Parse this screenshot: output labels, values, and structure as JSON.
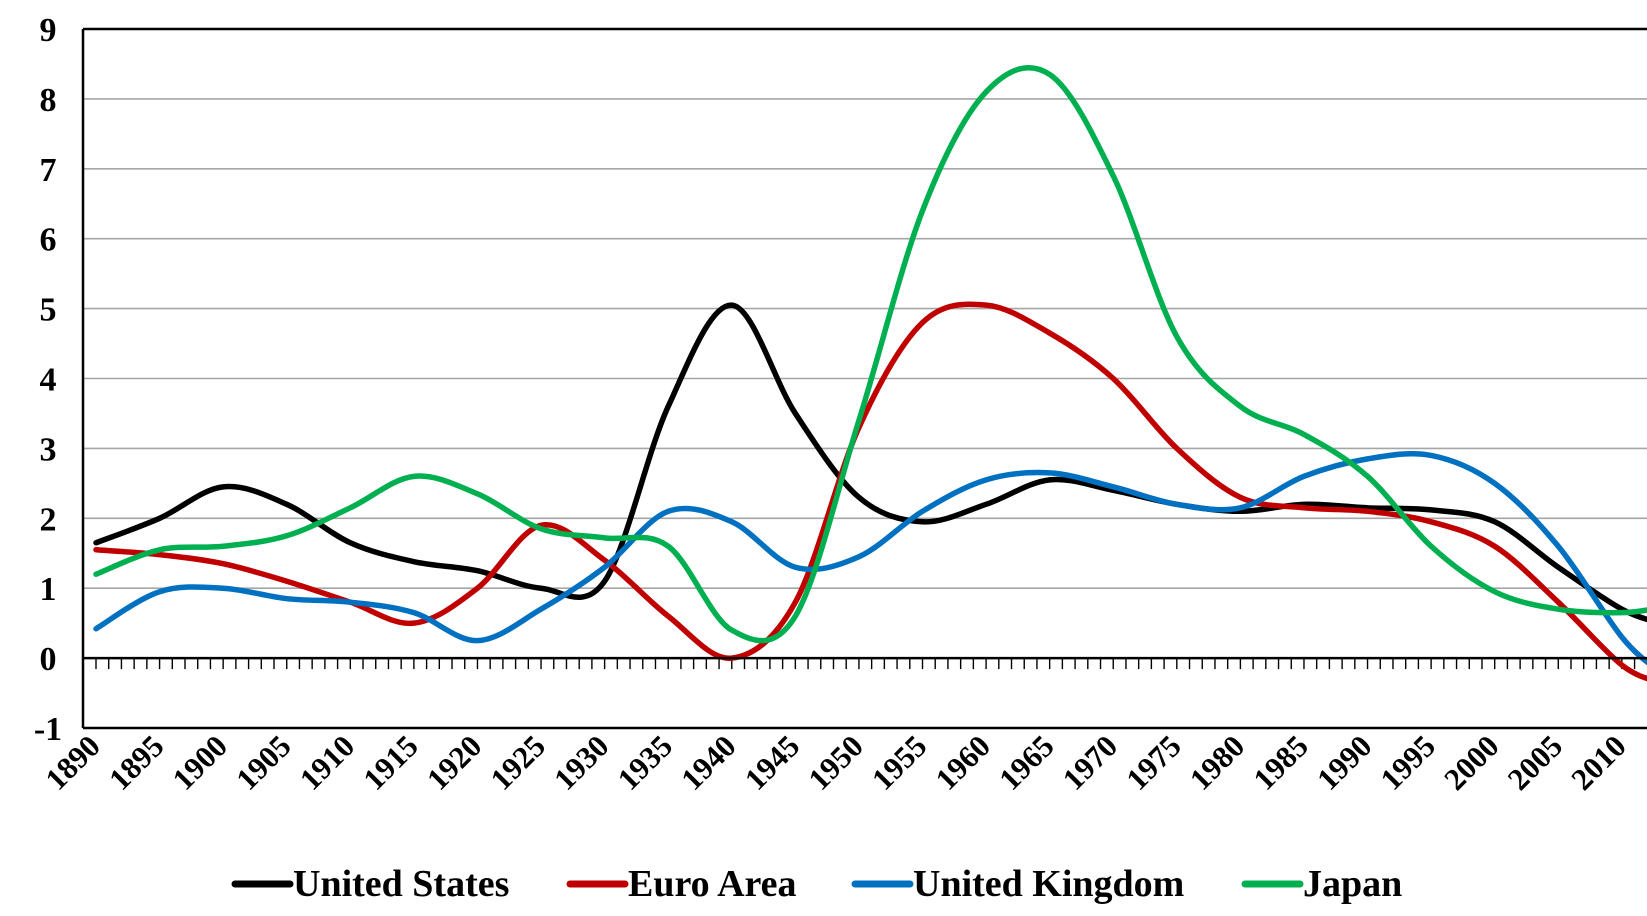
{
  "chart_data": {
    "type": "line",
    "title": "",
    "xlabel": "",
    "ylabel": "",
    "xlim": [
      1890,
      2013
    ],
    "ylim": [
      -1,
      9
    ],
    "y_ticks": [
      "9",
      "8",
      "7",
      "6",
      "5",
      "4",
      "3",
      "2",
      "1",
      "0",
      "-1"
    ],
    "x_ticks": [
      "1890",
      "1895",
      "1900",
      "1905",
      "1910",
      "1915",
      "1920",
      "1925",
      "1930",
      "1935",
      "1940",
      "1945",
      "1950",
      "1955",
      "1960",
      "1965",
      "1970",
      "1975",
      "1980",
      "1985",
      "1990",
      "1995",
      "2000",
      "2005",
      "2010"
    ],
    "grid": "horizontal",
    "legend_position": "bottom",
    "x": [
      1890,
      1895,
      1900,
      1905,
      1910,
      1915,
      1920,
      1925,
      1930,
      1935,
      1940,
      1945,
      1950,
      1955,
      1960,
      1965,
      1970,
      1975,
      1980,
      1985,
      1990,
      1995,
      2000,
      2005,
      2010,
      2013
    ],
    "series": [
      {
        "name": "United States",
        "color": "#000000",
        "values": [
          1.65,
          2.0,
          2.45,
          2.2,
          1.65,
          1.38,
          1.25,
          1.0,
          1.1,
          3.6,
          5.05,
          3.5,
          2.3,
          1.95,
          2.2,
          2.55,
          2.4,
          2.2,
          2.1,
          2.2,
          2.15,
          2.12,
          1.95,
          1.3,
          0.7,
          0.5
        ]
      },
      {
        "name": "Euro Area",
        "color": "#C00000",
        "values": [
          1.55,
          1.48,
          1.35,
          1.1,
          0.8,
          0.5,
          1.0,
          1.9,
          1.4,
          0.6,
          0.0,
          0.8,
          3.3,
          4.8,
          5.05,
          4.65,
          4.0,
          3.0,
          2.3,
          2.15,
          2.1,
          1.95,
          1.6,
          0.8,
          -0.1,
          -0.35
        ]
      },
      {
        "name": "United Kingdom",
        "color": "#0070C0",
        "values": [
          0.42,
          0.95,
          1.0,
          0.85,
          0.8,
          0.65,
          0.25,
          0.7,
          1.3,
          2.1,
          1.95,
          1.3,
          1.45,
          2.1,
          2.55,
          2.65,
          2.45,
          2.2,
          2.15,
          2.6,
          2.85,
          2.9,
          2.5,
          1.6,
          0.3,
          -0.2
        ]
      },
      {
        "name": "Japan",
        "color": "#00B050",
        "values": [
          1.2,
          1.55,
          1.6,
          1.75,
          2.15,
          2.6,
          2.35,
          1.85,
          1.72,
          1.6,
          0.4,
          0.6,
          3.4,
          6.4,
          8.1,
          8.35,
          6.9,
          4.6,
          3.6,
          3.2,
          2.6,
          1.6,
          0.95,
          0.7,
          0.65,
          0.72
        ]
      }
    ]
  }
}
